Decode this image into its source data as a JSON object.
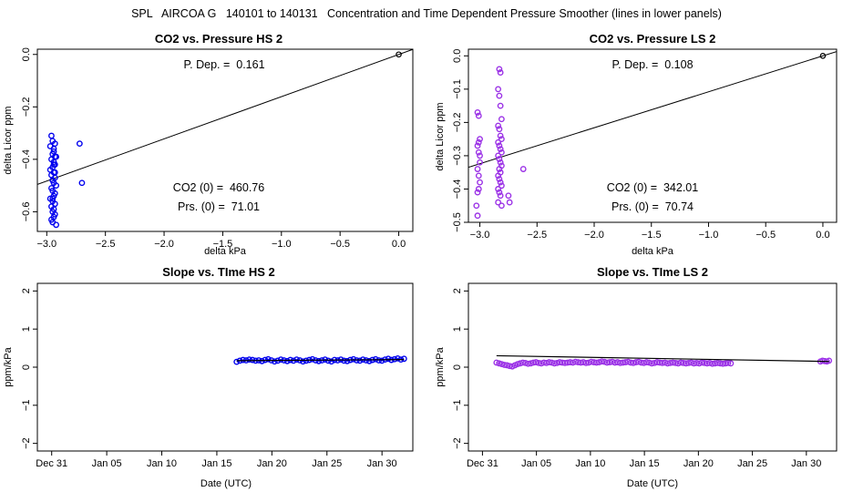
{
  "suptitle": "SPL   AIRCOA G   140101 to 140131   Concentration and Time Dependent Pressure Smoother (lines in lower panels)",
  "colors": {
    "hs": "#0000ee",
    "ls": "#9a30e6",
    "line": "#000000",
    "origin": "#000000"
  },
  "chart_data": [
    {
      "id": "co2-pressure-hs",
      "type": "scatter",
      "title": "CO2 vs. Pressure HS 2",
      "xlabel": "delta kPa",
      "ylabel": "delta Licor ppm",
      "xlim": [
        -3.08,
        0.12
      ],
      "ylim": [
        -0.675,
        0.02
      ],
      "xticks": [
        -3.0,
        -2.5,
        -2.0,
        -1.5,
        -1.0,
        -0.5,
        0.0
      ],
      "xtick_labels": [
        "−3.0",
        "−2.5",
        "−2.0",
        "−1.5",
        "−1.0",
        "−0.5",
        "0.0"
      ],
      "yticks": [
        0.0,
        -0.2,
        -0.4,
        -0.6
      ],
      "ytick_labels": [
        "0.0",
        "−0.2",
        "−0.4",
        "−0.6"
      ],
      "color_key": "hs",
      "fit_line": {
        "slope": 0.161,
        "intercept": 0.0
      },
      "origin_point": [
        0.0,
        0.0
      ],
      "annotations": [
        "P. Dep. =  0.161",
        "CO2 (0) =  460.76",
        "Prs. (0) =  71.01"
      ],
      "x": [
        -2.96,
        -2.95,
        -2.93,
        -2.97,
        -2.94,
        -2.95,
        -2.92,
        -2.96,
        -2.94,
        -2.93,
        -2.95,
        -2.97,
        -2.94,
        -2.96,
        -2.93,
        -2.95,
        -2.94,
        -2.92,
        -2.96,
        -2.95,
        -2.93,
        -2.94,
        -2.97,
        -2.95,
        -2.93,
        -2.96,
        -2.94,
        -2.95,
        -2.93,
        -2.94,
        -2.96,
        -2.95,
        -2.92,
        -2.94,
        -2.93,
        -2.95,
        -2.94,
        -2.93,
        -2.95,
        -2.72,
        -2.7
      ],
      "y": [
        -0.31,
        -0.33,
        -0.34,
        -0.35,
        -0.37,
        -0.38,
        -0.39,
        -0.4,
        -0.41,
        -0.42,
        -0.43,
        -0.44,
        -0.45,
        -0.46,
        -0.47,
        -0.48,
        -0.49,
        -0.5,
        -0.51,
        -0.52,
        -0.53,
        -0.54,
        -0.55,
        -0.56,
        -0.57,
        -0.58,
        -0.59,
        -0.6,
        -0.61,
        -0.62,
        -0.63,
        -0.64,
        -0.65,
        -0.42,
        -0.45,
        -0.48,
        -0.36,
        -0.39,
        -0.55,
        -0.34,
        -0.49
      ]
    },
    {
      "id": "co2-pressure-ls",
      "type": "scatter",
      "title": "CO2 vs. Pressure LS 2",
      "xlabel": "delta kPa",
      "ylabel": "delta Licor ppm",
      "xlim": [
        -3.1,
        0.12
      ],
      "ylim": [
        -0.5,
        0.02
      ],
      "xticks": [
        -3.0,
        -2.5,
        -2.0,
        -1.5,
        -1.0,
        -0.5,
        0.0
      ],
      "xtick_labels": [
        "−3.0",
        "−2.5",
        "−2.0",
        "−1.5",
        "−1.0",
        "−0.5",
        "0.0"
      ],
      "yticks": [
        0.0,
        -0.1,
        -0.2,
        -0.3,
        -0.4,
        -0.5
      ],
      "ytick_labels": [
        "0.0",
        "−0.1",
        "−0.2",
        "−0.3",
        "−0.4",
        "−0.5"
      ],
      "color_key": "ls",
      "fit_line": {
        "slope": 0.108,
        "intercept": 0.0
      },
      "origin_point": [
        0.0,
        0.0
      ],
      "annotations": [
        "P. Dep. =  0.108",
        "CO2 (0) =  342.01",
        "Prs. (0) =  70.74"
      ],
      "x": [
        -3.02,
        -3.01,
        -3.0,
        -3.02,
        -3.01,
        -3.0,
        -3.02,
        -3.01,
        -3.0,
        -3.02,
        -3.01,
        -3.03,
        -3.0,
        -3.02,
        -3.01,
        -2.83,
        -2.82,
        -2.84,
        -2.83,
        -2.82,
        -2.81,
        -2.84,
        -2.83,
        -2.82,
        -2.81,
        -2.84,
        -2.83,
        -2.82,
        -2.81,
        -2.84,
        -2.83,
        -2.82,
        -2.81,
        -2.83,
        -2.82,
        -2.84,
        -2.83,
        -2.82,
        -2.81,
        -2.84,
        -2.83,
        -2.82,
        -2.84,
        -2.81,
        -2.75,
        -2.74,
        -2.62
      ],
      "y": [
        -0.17,
        -0.18,
        -0.25,
        -0.27,
        -0.29,
        -0.32,
        -0.34,
        -0.36,
        -0.38,
        -0.41,
        -0.4,
        -0.45,
        -0.3,
        -0.48,
        -0.26,
        -0.04,
        -0.05,
        -0.1,
        -0.12,
        -0.15,
        -0.19,
        -0.21,
        -0.22,
        -0.24,
        -0.25,
        -0.26,
        -0.27,
        -0.28,
        -0.29,
        -0.3,
        -0.31,
        -0.32,
        -0.33,
        -0.34,
        -0.35,
        -0.36,
        -0.37,
        -0.38,
        -0.39,
        -0.4,
        -0.41,
        -0.42,
        -0.44,
        -0.45,
        -0.42,
        -0.44,
        -0.34
      ]
    },
    {
      "id": "slope-time-hs",
      "type": "line",
      "title": "Slope vs. TIme HS 2",
      "xlabel": "Date (UTC)",
      "ylabel": "ppm/kPa",
      "xlim": [
        -1.3,
        32.8
      ],
      "ylim": [
        -2.2,
        2.2
      ],
      "xticks": [
        0,
        5,
        10,
        15,
        20,
        25,
        30
      ],
      "xtick_labels": [
        "Dec 31",
        "Jan 05",
        "Jan 10",
        "Jan 15",
        "Jan 20",
        "Jan 25",
        "Jan 30"
      ],
      "yticks": [
        -2,
        -1,
        0,
        1,
        2
      ],
      "ytick_labels": [
        "−2",
        "−1",
        "0",
        "1",
        "2"
      ],
      "color_key": "hs",
      "x_start": 16.8,
      "x_end": 32.0,
      "point_count": 54,
      "y": [
        0.14,
        0.17,
        0.19,
        0.18,
        0.2,
        0.19,
        0.17,
        0.18,
        0.16,
        0.19,
        0.21,
        0.18,
        0.15,
        0.17,
        0.2,
        0.18,
        0.16,
        0.19,
        0.17,
        0.2,
        0.18,
        0.15,
        0.17,
        0.19,
        0.21,
        0.18,
        0.16,
        0.18,
        0.2,
        0.17,
        0.15,
        0.19,
        0.18,
        0.2,
        0.17,
        0.16,
        0.19,
        0.21,
        0.18,
        0.17,
        0.2,
        0.18,
        0.16,
        0.19,
        0.21,
        0.18,
        0.17,
        0.2,
        0.22,
        0.19,
        0.21,
        0.23,
        0.2,
        0.22
      ],
      "smoother_y": [
        0.17,
        0.2
      ]
    },
    {
      "id": "slope-time-ls",
      "type": "line",
      "title": "Slope vs. TIme LS 2",
      "xlabel": "Date (UTC)",
      "ylabel": "ppm/kPa",
      "xlim": [
        -1.3,
        32.8
      ],
      "ylim": [
        -2.2,
        2.2
      ],
      "xticks": [
        0,
        5,
        10,
        15,
        20,
        25,
        30
      ],
      "xtick_labels": [
        "Dec 31",
        "Jan 05",
        "Jan 10",
        "Jan 15",
        "Jan 20",
        "Jan 25",
        "Jan 30"
      ],
      "yticks": [
        -2,
        -1,
        0,
        1,
        2
      ],
      "ytick_labels": [
        "−2",
        "−1",
        "0",
        "1",
        "2"
      ],
      "color_key": "ls",
      "x_start": 1.3,
      "x_end": 23.0,
      "point_count": 90,
      "y": [
        0.12,
        0.1,
        0.08,
        0.06,
        0.05,
        0.03,
        0.02,
        0.05,
        0.08,
        0.1,
        0.12,
        0.11,
        0.09,
        0.1,
        0.12,
        0.13,
        0.11,
        0.1,
        0.12,
        0.11,
        0.13,
        0.12,
        0.1,
        0.11,
        0.13,
        0.12,
        0.11,
        0.12,
        0.13,
        0.12,
        0.14,
        0.13,
        0.12,
        0.13,
        0.11,
        0.12,
        0.14,
        0.13,
        0.12,
        0.13,
        0.15,
        0.14,
        0.12,
        0.13,
        0.14,
        0.12,
        0.13,
        0.11,
        0.12,
        0.13,
        0.14,
        0.12,
        0.11,
        0.13,
        0.14,
        0.12,
        0.11,
        0.13,
        0.12,
        0.1,
        0.11,
        0.13,
        0.12,
        0.11,
        0.12,
        0.1,
        0.11,
        0.12,
        0.11,
        0.1,
        0.12,
        0.11,
        0.1,
        0.11,
        0.12,
        0.1,
        0.11,
        0.1,
        0.12,
        0.11,
        0.1,
        0.11,
        0.09,
        0.1,
        0.11,
        0.1,
        0.09,
        0.1,
        0.11,
        0.1
      ],
      "extra_x": [
        31.3,
        31.5,
        31.7,
        31.9,
        32.1
      ],
      "extra_y": [
        0.15,
        0.17,
        0.16,
        0.15,
        0.17
      ],
      "smoother_x": [
        1.3,
        32.1
      ],
      "smoother_y": [
        0.3,
        0.15
      ]
    }
  ]
}
